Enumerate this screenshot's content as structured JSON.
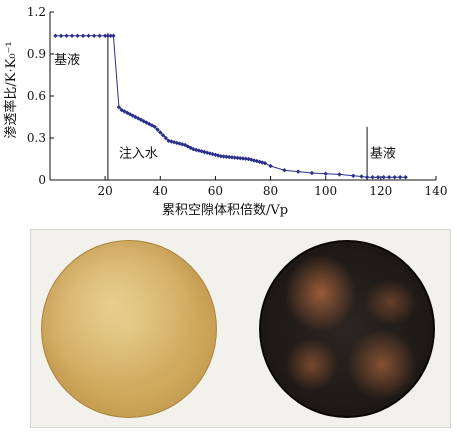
{
  "chart_data": {
    "type": "line",
    "title": "",
    "xlabel": "累积空隙体积倍数/Vp",
    "ylabel": "渗透率比/K·K₀⁻¹",
    "xlim": [
      0,
      140
    ],
    "ylim": [
      0,
      1.2
    ],
    "xticks": [
      20,
      40,
      60,
      80,
      100,
      120,
      140
    ],
    "yticks": [
      0,
      0.3,
      0.6,
      0.9,
      1.2
    ],
    "color": "#2b2f8a",
    "grid": false,
    "series": [
      {
        "values": [
          [
            2,
            1.03
          ],
          [
            4,
            1.03
          ],
          [
            6,
            1.03
          ],
          [
            8,
            1.03
          ],
          [
            10,
            1.03
          ],
          [
            12,
            1.03
          ],
          [
            14,
            1.03
          ],
          [
            16,
            1.03
          ],
          [
            18,
            1.03
          ],
          [
            20,
            1.03
          ],
          [
            21,
            1.03
          ],
          [
            22,
            1.03
          ],
          [
            23,
            1.03
          ],
          [
            25,
            0.52
          ],
          [
            26,
            0.5
          ],
          [
            27,
            0.49
          ],
          [
            28,
            0.48
          ],
          [
            29,
            0.47
          ],
          [
            30,
            0.46
          ],
          [
            31,
            0.45
          ],
          [
            32,
            0.44
          ],
          [
            33,
            0.43
          ],
          [
            34,
            0.42
          ],
          [
            35,
            0.41
          ],
          [
            36,
            0.4
          ],
          [
            37,
            0.39
          ],
          [
            38,
            0.38
          ],
          [
            39,
            0.36
          ],
          [
            40,
            0.34
          ],
          [
            41,
            0.32
          ],
          [
            42,
            0.3
          ],
          [
            43,
            0.28
          ],
          [
            44,
            0.275
          ],
          [
            45,
            0.27
          ],
          [
            46,
            0.265
          ],
          [
            47,
            0.26
          ],
          [
            48,
            0.255
          ],
          [
            49,
            0.25
          ],
          [
            50,
            0.24
          ],
          [
            51,
            0.23
          ],
          [
            52,
            0.22
          ],
          [
            53,
            0.215
          ],
          [
            54,
            0.21
          ],
          [
            55,
            0.205
          ],
          [
            56,
            0.2
          ],
          [
            57,
            0.195
          ],
          [
            58,
            0.19
          ],
          [
            59,
            0.185
          ],
          [
            60,
            0.18
          ],
          [
            61,
            0.175
          ],
          [
            62,
            0.17
          ],
          [
            63,
            0.168
          ],
          [
            64,
            0.166
          ],
          [
            65,
            0.164
          ],
          [
            66,
            0.162
          ],
          [
            67,
            0.16
          ],
          [
            68,
            0.158
          ],
          [
            69,
            0.156
          ],
          [
            70,
            0.154
          ],
          [
            71,
            0.152
          ],
          [
            72,
            0.15
          ],
          [
            73,
            0.145
          ],
          [
            74,
            0.14
          ],
          [
            75,
            0.135
          ],
          [
            76,
            0.13
          ],
          [
            77,
            0.125
          ],
          [
            78,
            0.12
          ],
          [
            80,
            0.1
          ],
          [
            85,
            0.07
          ],
          [
            90,
            0.06
          ],
          [
            95,
            0.05
          ],
          [
            100,
            0.045
          ],
          [
            105,
            0.04
          ],
          [
            110,
            0.03
          ],
          [
            113,
            0.025
          ],
          [
            115,
            0.02
          ],
          [
            117,
            0.02
          ],
          [
            119,
            0.02
          ],
          [
            121,
            0.02
          ],
          [
            123,
            0.02
          ],
          [
            125,
            0.02
          ],
          [
            127,
            0.02
          ],
          [
            129,
            0.02
          ]
        ]
      }
    ],
    "reference_lines": [
      {
        "x": 21,
        "y_top": 1.05
      },
      {
        "x": 115,
        "y_top": 0.38
      }
    ],
    "annotations": [
      {
        "text": "基液",
        "x": 1.5,
        "y": 0.83
      },
      {
        "text": "注入水",
        "x": 25,
        "y": 0.16
      },
      {
        "text": "基液",
        "x": 116,
        "y": 0.16
      }
    ]
  },
  "photos": [
    {
      "name": "sample-before"
    },
    {
      "name": "sample-after"
    }
  ]
}
